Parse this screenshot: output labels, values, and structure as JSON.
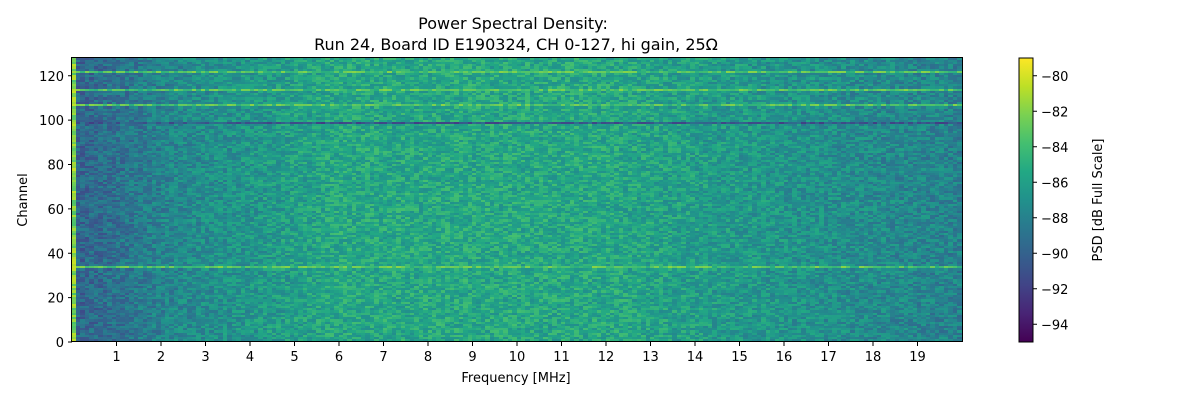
{
  "chart_data": {
    "type": "heatmap",
    "title_line1": "Power Spectral Density:",
    "title_line2": "Run 24, Board ID E190324, CH 0-127, hi gain, 25Ω",
    "xlabel": "Frequency [MHz]",
    "ylabel": "Channel",
    "xlim": [
      0,
      20
    ],
    "ylim": [
      0,
      128
    ],
    "x_ticks": [
      1,
      2,
      3,
      4,
      5,
      6,
      7,
      8,
      9,
      10,
      11,
      12,
      13,
      14,
      15,
      16,
      17,
      18,
      19
    ],
    "y_ticks": [
      0,
      20,
      40,
      60,
      80,
      100,
      120
    ],
    "colorbar": {
      "label": "PSD [dB Full Scale]",
      "range": [
        -95,
        -79
      ],
      "ticks": [
        -94,
        -92,
        -90,
        -88,
        -86,
        -84,
        -82,
        -80
      ],
      "colormap": "viridis"
    },
    "grid": false,
    "legend": "none",
    "approx_structure": {
      "baseline_db": -87.5,
      "low_freq_region_mhz": [
        0,
        2.5
      ],
      "low_freq_level_db": -90,
      "mid_freq_peak_region_mhz": [
        6,
        12
      ],
      "mid_freq_level_db": -85.5,
      "high_freq_level_db": -88,
      "dark_horizontal_line_channel": 98,
      "dark_line_level_db": -90.5,
      "bright_horizontal_line_channels": [
        33,
        106,
        113,
        121
      ],
      "bright_line_level_db": -83.5,
      "bright_left_edge_mhz": [
        0,
        0.15
      ],
      "bright_left_edge_level_db": -82
    }
  }
}
